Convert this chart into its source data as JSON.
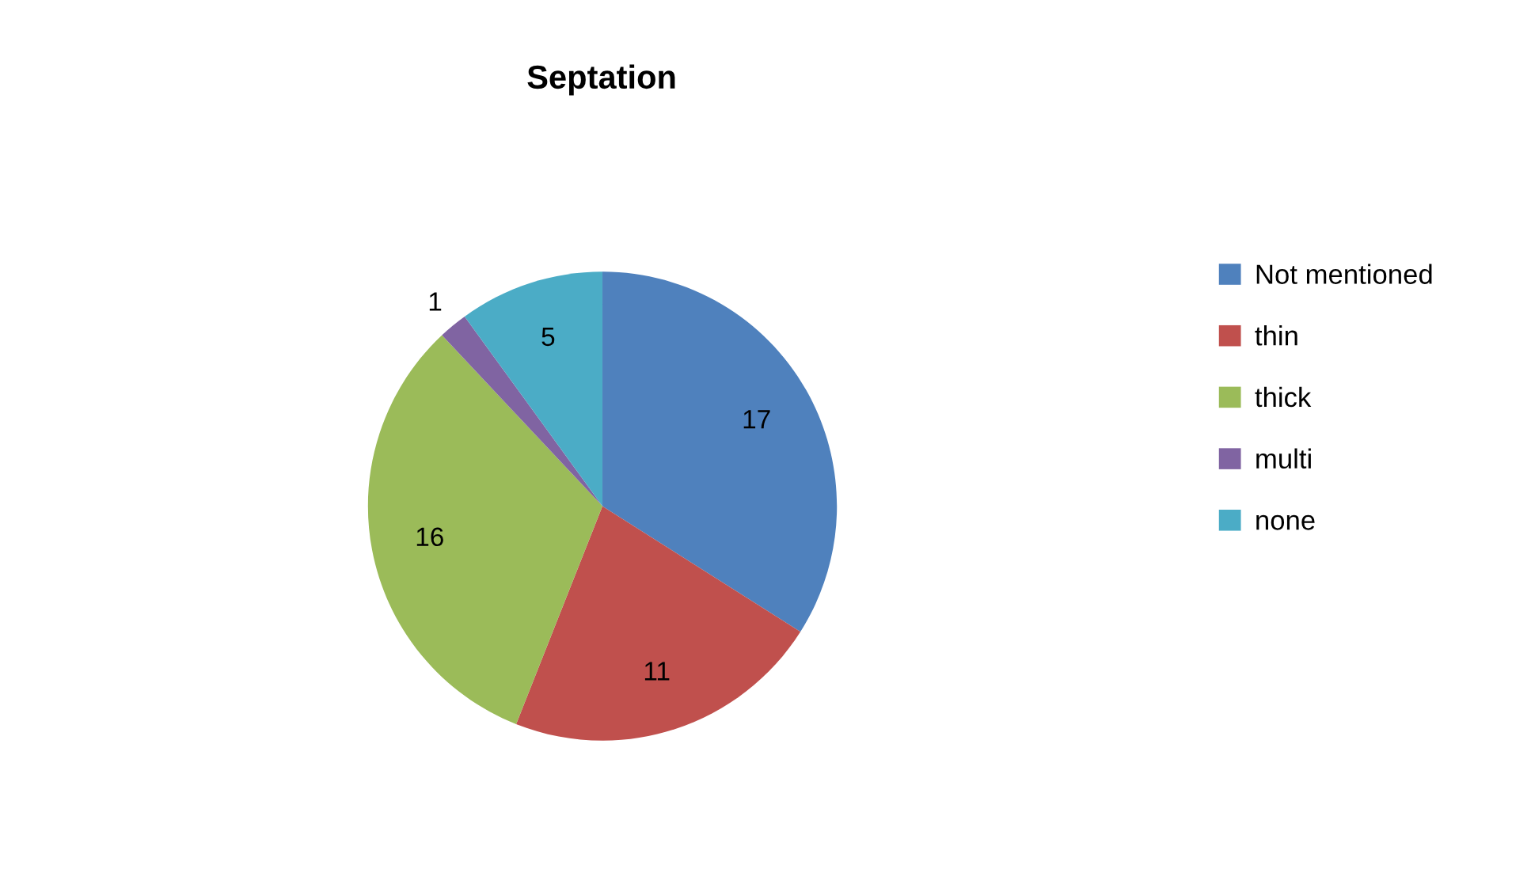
{
  "chart_data": {
    "type": "pie",
    "title": "Septation",
    "categories": [
      "Not mentioned",
      "thin",
      "thick",
      "multi",
      "none"
    ],
    "values": [
      17,
      11,
      16,
      1,
      5
    ],
    "colors": [
      "#4f81bd",
      "#c0504d",
      "#9bbb59",
      "#8064a2",
      "#4bacc6"
    ],
    "data_labels": true,
    "legend": "right"
  }
}
